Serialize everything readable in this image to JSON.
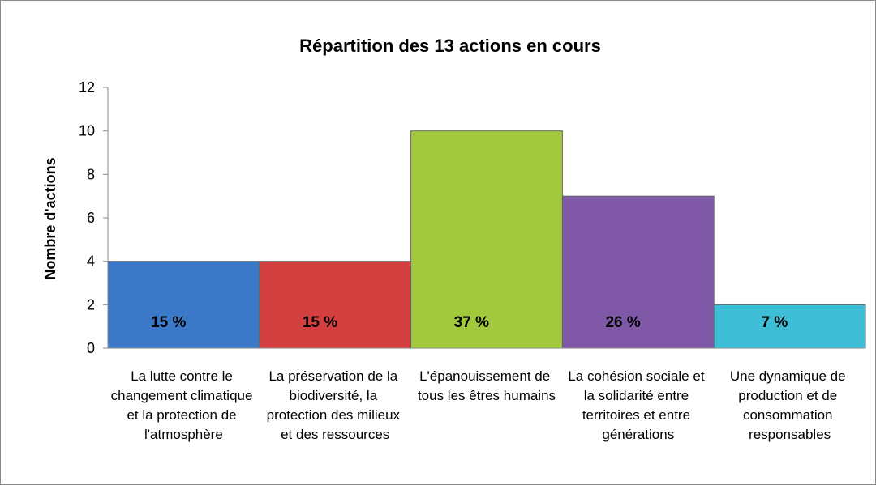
{
  "chart_data": {
    "type": "bar",
    "title": "Répartition des 13 actions en cours",
    "y_label": "Nombre d'actions",
    "categories": [
      "La lutte contre le changement climatique et la protection de l'atmosphère",
      "La préservation de la biodiversité, la protection des milieux et des ressources",
      "L'épanouissement de tous les êtres humains",
      "La cohésion sociale et la solidarité entre territoires et entre générations",
      "Une dynamique de production et de consommation responsables"
    ],
    "values": [
      4,
      4,
      10,
      7,
      2
    ],
    "annotations": [
      "15 %",
      "15 %",
      "37 %",
      "26 %",
      "7 %"
    ],
    "colors": [
      "#3b78c8",
      "#d44040",
      "#a2c83e",
      "#7f58a8",
      "#3ebdd6"
    ],
    "ylim": [
      0,
      12
    ],
    "yticks": [
      0,
      2,
      4,
      6,
      8,
      10,
      12
    ],
    "grid": false
  }
}
